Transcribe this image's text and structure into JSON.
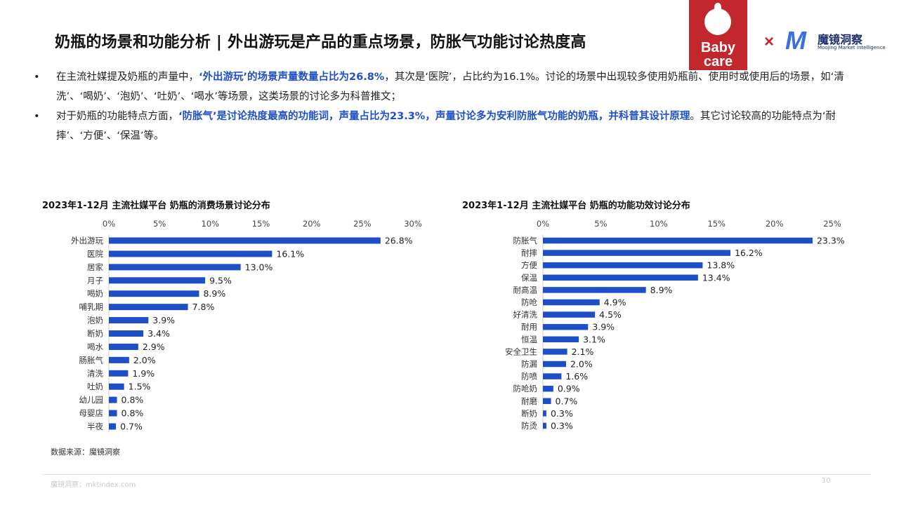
{
  "header": {
    "title": "奶瓶的场景和功能分析 | 外出游玩是产品的重点场景，防胀气功能讨论热度高"
  },
  "logos": {
    "babycare_line1": "Baby",
    "babycare_line2": "care",
    "separator": "×",
    "mojing_mark": "M",
    "mojing_cn": "魔镜洞察",
    "mojing_en": "Moojing Market Intelligence",
    "babycare_color": "#c1272d",
    "mojing_color": "#3b6fe0"
  },
  "bullets": [
    {
      "dot": "•",
      "p1": "在主流社媒提及奶瓶的声量中，",
      "h1": "‘外出游玩’的场景声量数量占比为26.8%",
      "p2": "，其次是‘医院’，占比约为16.1%。讨论的场景中出现较多使用奶瓶前、使用时或使用后的场景，如‘清洗’、‘喝奶’、‘泡奶’、‘吐奶’、‘喝水’等场景，这类场景的讨论多为科普推文；"
    },
    {
      "dot": "•",
      "p1": "对于奶瓶的功能特点方面，",
      "h1": "‘防胀气’是讨论热度最高的功能词，声量占比为23.3%，声量讨论多为安利防胀气功能的奶瓶，并科普其设计原理",
      "p2": "。其它讨论较高的功能特点为‘耐摔’、‘方便’、‘保温’等。"
    }
  ],
  "bar_color": "#1f4fc7",
  "chart_data": [
    {
      "type": "bar",
      "orientation": "horizontal",
      "title": "2023年1-12月 主流社媒平台 奶瓶的消费场景讨论分布",
      "categories": [
        "外出游玩",
        "医院",
        "居家",
        "月子",
        "喝奶",
        "哺乳期",
        "泡奶",
        "断奶",
        "喝水",
        "肠胀气",
        "清洗",
        "吐奶",
        "幼儿园",
        "母婴店",
        "半夜"
      ],
      "values": [
        26.8,
        16.1,
        13.0,
        9.5,
        8.9,
        7.8,
        3.9,
        3.4,
        2.9,
        2.0,
        1.9,
        1.5,
        0.8,
        0.8,
        0.7
      ],
      "value_labels": [
        "26.8%",
        "16.1%",
        "13.0%",
        "9.5%",
        "8.9%",
        "7.8%",
        "3.9%",
        "3.4%",
        "2.9%",
        "2.0%",
        "1.9%",
        "1.5%",
        "0.8%",
        "0.8%",
        "0.7%"
      ],
      "xlim": [
        0,
        30
      ],
      "xticks": [
        0,
        5,
        10,
        15,
        20,
        25,
        30
      ],
      "xtick_labels": [
        "0%",
        "5%",
        "10%",
        "15%",
        "20%",
        "25%",
        "30%"
      ],
      "axis_position": "top",
      "grid": false
    },
    {
      "type": "bar",
      "orientation": "horizontal",
      "title": "2023年1-12月 主流社媒平台 奶瓶的功能功效讨论分布",
      "categories": [
        "防胀气",
        "耐摔",
        "方便",
        "保温",
        "耐高温",
        "防呛",
        "好清洗",
        "耐用",
        "恒温",
        "安全卫生",
        "防漏",
        "防喷",
        "防呛奶",
        "耐磨",
        "断奶",
        "防烫"
      ],
      "values": [
        23.3,
        16.2,
        13.8,
        13.4,
        8.9,
        4.9,
        4.5,
        3.9,
        3.1,
        2.1,
        2.0,
        1.6,
        0.9,
        0.7,
        0.3,
        0.3
      ],
      "value_labels": [
        "23.3%",
        "16.2%",
        "13.8%",
        "13.4%",
        "8.9%",
        "4.9%",
        "4.5%",
        "3.9%",
        "3.1%",
        "2.1%",
        "2.0%",
        "1.6%",
        "0.9%",
        "0.7%",
        "0.3%",
        "0.3%"
      ],
      "xlim": [
        0,
        25
      ],
      "xticks": [
        0,
        5,
        10,
        15,
        20,
        25
      ],
      "xtick_labels": [
        "0%",
        "5%",
        "10%",
        "15%",
        "20%",
        "25%"
      ],
      "axis_position": "top",
      "grid": false
    }
  ],
  "source": "数据来源：魔镜洞察",
  "footer": {
    "site": "魔镜洞察：mktindex.com",
    "page_number": "10"
  }
}
